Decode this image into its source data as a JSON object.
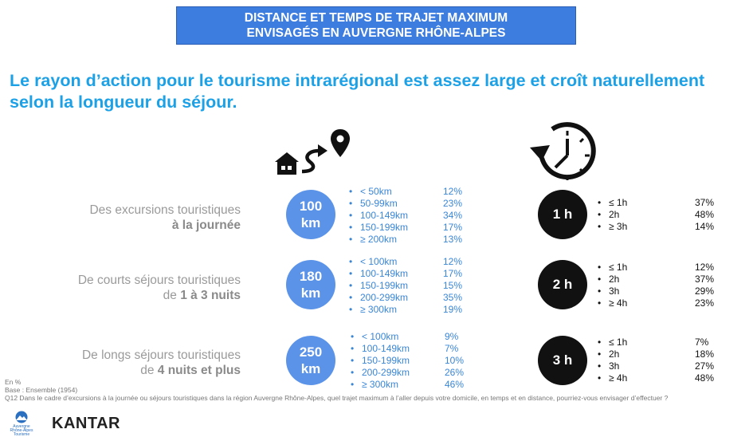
{
  "banner": {
    "line1": "DISTANCE ET TEMPS DE TRAJET MAXIMUM",
    "line2": "ENVISAGÉS EN AUVERGNE RHÔNE-ALPES"
  },
  "headline": "Le rayon d’action pour le tourisme intrarégional est assez large et croît naturellement selon la longueur du séjour.",
  "icons": {
    "house": "house-route-pin-icon",
    "clock": "clock-icon"
  },
  "rows": [
    {
      "label_light": "Des excursions touristiques",
      "label_bold": "à la journée",
      "label_prefix": "",
      "distance_value": "100",
      "distance_unit": "km",
      "time": "1 h",
      "distance_items": [
        {
          "label": "< 50km",
          "pct": "12%"
        },
        {
          "label": "50-99km",
          "pct": "23%"
        },
        {
          "label": "100-149km",
          "pct": "34%"
        },
        {
          "label": "150-199km",
          "pct": "17%"
        },
        {
          "label": "≥ 200km",
          "pct": "13%"
        }
      ],
      "time_items": [
        {
          "label": "≤ 1h",
          "pct": "37%"
        },
        {
          "label": "2h",
          "pct": "48%"
        },
        {
          "label": "≥ 3h",
          "pct": "14%"
        }
      ]
    },
    {
      "label_light": "De courts séjours touristiques",
      "label_prefix": "de ",
      "label_bold": "1 à 3 nuits",
      "distance_value": "180",
      "distance_unit": "km",
      "time": "2 h",
      "distance_items": [
        {
          "label": "< 100km",
          "pct": "12%"
        },
        {
          "label": "100-149km",
          "pct": "17%"
        },
        {
          "label": "150-199km",
          "pct": "15%"
        },
        {
          "label": "200-299km",
          "pct": "35%"
        },
        {
          "label": "≥ 300km",
          "pct": "19%"
        }
      ],
      "time_items": [
        {
          "label": "≤ 1h",
          "pct": "12%"
        },
        {
          "label": "2h",
          "pct": "37%"
        },
        {
          "label": "3h",
          "pct": "29%"
        },
        {
          "label": "≥ 4h",
          "pct": "23%"
        }
      ]
    },
    {
      "label_light": "De longs séjours touristiques",
      "label_prefix": "de ",
      "label_bold": "4 nuits et plus",
      "distance_value": "250",
      "distance_unit": "km",
      "time": "3 h",
      "distance_items": [
        {
          "label": "< 100km",
          "pct": "9%"
        },
        {
          "label": "100-149km",
          "pct": "7%"
        },
        {
          "label": "150-199km",
          "pct": "10%"
        },
        {
          "label": "200-299km",
          "pct": "26%"
        },
        {
          "label": "≥ 300km",
          "pct": "46%"
        }
      ],
      "time_items": [
        {
          "label": "≤ 1h",
          "pct": "7%"
        },
        {
          "label": "2h",
          "pct": "18%"
        },
        {
          "label": "3h",
          "pct": "27%"
        },
        {
          "label": "≥ 4h",
          "pct": "48%"
        }
      ]
    }
  ],
  "footer": {
    "unit": "En %",
    "base": "Base : Ensemble (1954)",
    "question": "Q12 Dans le cadre d’excursions à la journée ou séjours touristiques dans la région Auvergne Rhône-Alpes, quel trajet maximum à l’aller depuis votre domicile, en temps et en distance, pourriez-vous envisager d’effectuer ?"
  },
  "logos": {
    "region_line1": "Auvergne",
    "region_line2": "Rhône-Alpes",
    "region_line3": "Tourisme",
    "kantar": "KANTAR"
  },
  "colors": {
    "banner": "#3d7de0",
    "headline": "#1da1e6",
    "km_circle": "#5b93e8",
    "time_circle": "#111111",
    "list_blue": "#3a86d6"
  }
}
